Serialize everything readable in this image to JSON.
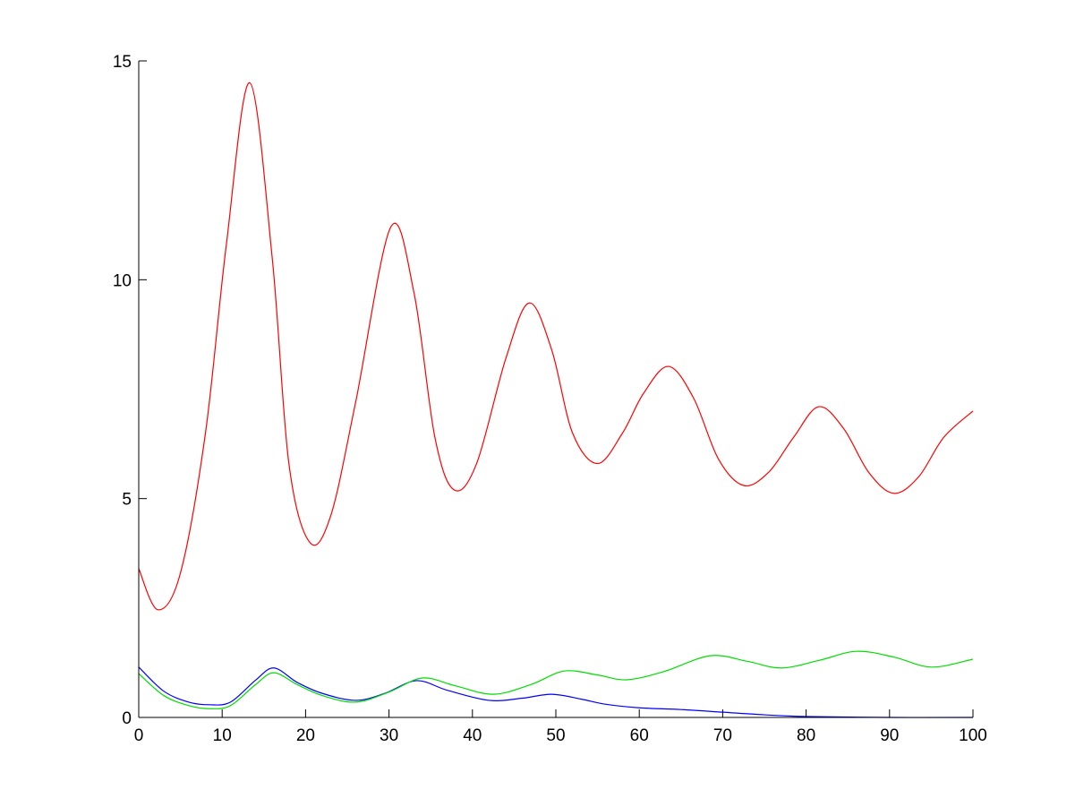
{
  "chart_data": {
    "type": "line",
    "title": "",
    "xlabel": "",
    "ylabel": "",
    "xlim": [
      0,
      100
    ],
    "ylim": [
      0,
      15
    ],
    "xticks": [
      0,
      10,
      20,
      30,
      40,
      50,
      60,
      70,
      80,
      90,
      100
    ],
    "yticks": [
      0,
      5,
      10,
      15
    ],
    "grid": false,
    "legend": "none",
    "series": [
      {
        "color": "#ff0000",
        "x": [
          0,
          2.3,
          5,
          8,
          10.5,
          13.3,
          16,
          18,
          20.5,
          23,
          26,
          30.2,
          33,
          35.5,
          37.8,
          40.5,
          44,
          46.8,
          49.5,
          52,
          55,
          58,
          60.5,
          63.5,
          66.5,
          69.5,
          72.5,
          75.5,
          78.5,
          81.5,
          84.5,
          87.5,
          90.5,
          93.5,
          96.5,
          100
        ],
        "y": [
          3.4,
          2.46,
          3.3,
          6.5,
          10.8,
          14.5,
          10.5,
          5.8,
          4.0,
          4.6,
          7.2,
          11.2,
          9.7,
          6.4,
          5.2,
          5.8,
          8.2,
          9.47,
          8.4,
          6.5,
          5.8,
          6.5,
          7.4,
          8.02,
          7.3,
          5.9,
          5.3,
          5.6,
          6.4,
          7.1,
          6.6,
          5.6,
          5.12,
          5.5,
          6.4,
          7.0
        ]
      },
      {
        "color": "#0000ff",
        "x": [
          0,
          3,
          6,
          8.5,
          11,
          14,
          16.2,
          19,
          22,
          26,
          29.5,
          33.3,
          37,
          42,
          46,
          49.5,
          53,
          56,
          60,
          65,
          70,
          75,
          80,
          90,
          100
        ],
        "y": [
          1.15,
          0.6,
          0.35,
          0.29,
          0.35,
          0.85,
          1.13,
          0.8,
          0.55,
          0.39,
          0.55,
          0.84,
          0.62,
          0.39,
          0.44,
          0.53,
          0.42,
          0.3,
          0.22,
          0.18,
          0.12,
          0.06,
          0.02,
          0.0,
          0.0
        ]
      },
      {
        "color": "#00dd00",
        "x": [
          0,
          3,
          6,
          8.5,
          11,
          14,
          16.2,
          19,
          22,
          26,
          30,
          34,
          38,
          42.5,
          47,
          51,
          55,
          58.5,
          63,
          68.5,
          73,
          77,
          81.5,
          86,
          90.5,
          95,
          100
        ],
        "y": [
          1.0,
          0.5,
          0.27,
          0.2,
          0.27,
          0.75,
          1.02,
          0.75,
          0.5,
          0.35,
          0.58,
          0.9,
          0.72,
          0.53,
          0.75,
          1.06,
          0.97,
          0.86,
          1.05,
          1.41,
          1.28,
          1.13,
          1.3,
          1.51,
          1.38,
          1.15,
          1.33
        ]
      }
    ]
  }
}
